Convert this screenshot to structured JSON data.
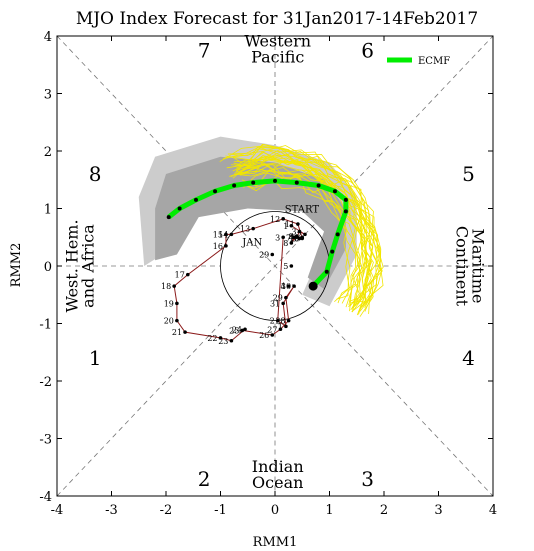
{
  "chart_data": {
    "type": "line",
    "title": "MJO Index Forecast for 31Jan2017-14Feb2017",
    "xlabel": "RMM1",
    "ylabel": "RMM2",
    "xlim": [
      -4,
      4
    ],
    "ylim": [
      -4,
      4
    ],
    "xticks": [
      "-4",
      "-3",
      "-2",
      "-1",
      "0",
      "1",
      "2",
      "3",
      "4"
    ],
    "yticks": [
      "-4",
      "-3",
      "-2",
      "-1",
      "0",
      "1",
      "2",
      "3",
      "4"
    ],
    "unit_circle_radius": 1,
    "phases": [
      {
        "label": "1",
        "x": -3.3,
        "y": -1.6
      },
      {
        "label": "2",
        "x": -1.3,
        "y": -3.7
      },
      {
        "label": "3",
        "x": 1.7,
        "y": -3.7
      },
      {
        "label": "4",
        "x": 3.55,
        "y": -1.6
      },
      {
        "label": "5",
        "x": 3.55,
        "y": 1.6
      },
      {
        "label": "6",
        "x": 1.7,
        "y": 3.75
      },
      {
        "label": "7",
        "x": -1.3,
        "y": 3.75
      },
      {
        "label": "8",
        "x": -3.3,
        "y": 1.6
      }
    ],
    "regions": [
      {
        "lines": [
          "Western",
          "Pacific"
        ],
        "x": 0.05,
        "y": 3.75,
        "rotate": 0
      },
      {
        "lines": [
          "Indian",
          "Ocean"
        ],
        "x": 0.05,
        "y": -3.65,
        "rotate": 0
      },
      {
        "lines": [
          "West. Hem.",
          "and Africa"
        ],
        "x": -3.55,
        "y": 0,
        "rotate": -90
      },
      {
        "lines": [
          "Maritime",
          "Continent"
        ],
        "x": 3.55,
        "y": 0,
        "rotate": 90
      }
    ],
    "legend": {
      "label": "ECMF",
      "color": "#00ee00",
      "position": "top-right"
    },
    "annotations": [
      {
        "text": "START",
        "x": 0.18,
        "y": 0.93,
        "color": "#000080"
      },
      {
        "text": "JAN",
        "x": -0.6,
        "y": 0.36,
        "color": "#b22222"
      }
    ],
    "observed": {
      "color": "#8b1a1a",
      "points": [
        {
          "label": "1",
          "x": 0.3,
          "y": 0.7
        },
        {
          "label": "2",
          "x": 0.55,
          "y": 0.55
        },
        {
          "label": "3",
          "x": 0.45,
          "y": 0.6
        },
        {
          "label": "4",
          "x": 0.4,
          "y": 0.5
        },
        {
          "label": "5",
          "x": 0.45,
          "y": 0.48
        },
        {
          "label": "6",
          "x": 0.5,
          "y": 0.5
        },
        {
          "label": "7",
          "x": 0.35,
          "y": 0.5
        },
        {
          "label": "8",
          "x": 0.3,
          "y": 0.4
        },
        {
          "label": "9",
          "x": 0.4,
          "y": 0.52
        },
        {
          "label": "10",
          "x": 0.5,
          "y": 0.48
        },
        {
          "label": "11",
          "x": 0.42,
          "y": 0.73
        },
        {
          "label": "12",
          "x": 0.15,
          "y": 0.82
        },
        {
          "label": "13",
          "x": -0.4,
          "y": 0.65
        },
        {
          "label": "14",
          "x": -0.8,
          "y": 0.55
        },
        {
          "label": "15",
          "x": -0.9,
          "y": 0.55
        },
        {
          "label": "16",
          "x": -0.9,
          "y": 0.35
        },
        {
          "label": "17",
          "x": -1.6,
          "y": -0.15
        },
        {
          "label": "18",
          "x": -1.85,
          "y": -0.35
        },
        {
          "label": "19",
          "x": -1.8,
          "y": -0.65
        },
        {
          "label": "20",
          "x": -1.8,
          "y": -0.95
        },
        {
          "label": "21",
          "x": -1.65,
          "y": -1.15
        },
        {
          "label": "22",
          "x": -1.0,
          "y": -1.25
        },
        {
          "label": "23",
          "x": -0.8,
          "y": -1.3
        },
        {
          "label": "24",
          "x": -0.55,
          "y": -1.1
        },
        {
          "label": "25",
          "x": -0.6,
          "y": -1.12
        },
        {
          "label": "26",
          "x": -0.05,
          "y": -1.2
        },
        {
          "label": "27",
          "x": 0.1,
          "y": -1.1
        },
        {
          "label": "28",
          "x": 0.25,
          "y": -0.95
        },
        {
          "label": "29",
          "x": 0.2,
          "y": -0.55
        },
        {
          "label": "30",
          "x": 0.35,
          "y": -0.35
        },
        {
          "label": "31",
          "x": 0.15,
          "y": -0.65
        },
        {
          "label": "1",
          "x": 0.2,
          "y": -1.05
        },
        {
          "label": "2",
          "x": 0.05,
          "y": -0.95
        },
        {
          "label": "3",
          "x": 0.15,
          "y": 0.5
        },
        {
          "label": "4",
          "x": 0.25,
          "y": -0.35
        },
        {
          "label": "5",
          "x": 0.3,
          "y": 0.0
        },
        {
          "label": "29",
          "x": -0.05,
          "y": 0.2
        }
      ]
    },
    "series": [
      {
        "name": "ECMF",
        "color": "#00ee00",
        "x": [
          0.7,
          0.95,
          1.05,
          1.15,
          1.3,
          1.3,
          1.1,
          0.8,
          0.4,
          0.0,
          -0.4,
          -0.75,
          -1.1,
          -1.45,
          -1.75,
          -1.95
        ],
        "y": [
          -0.35,
          -0.1,
          0.25,
          0.55,
          0.95,
          1.15,
          1.3,
          1.4,
          1.45,
          1.48,
          1.45,
          1.4,
          1.3,
          1.15,
          1.0,
          0.85
        ]
      }
    ]
  }
}
